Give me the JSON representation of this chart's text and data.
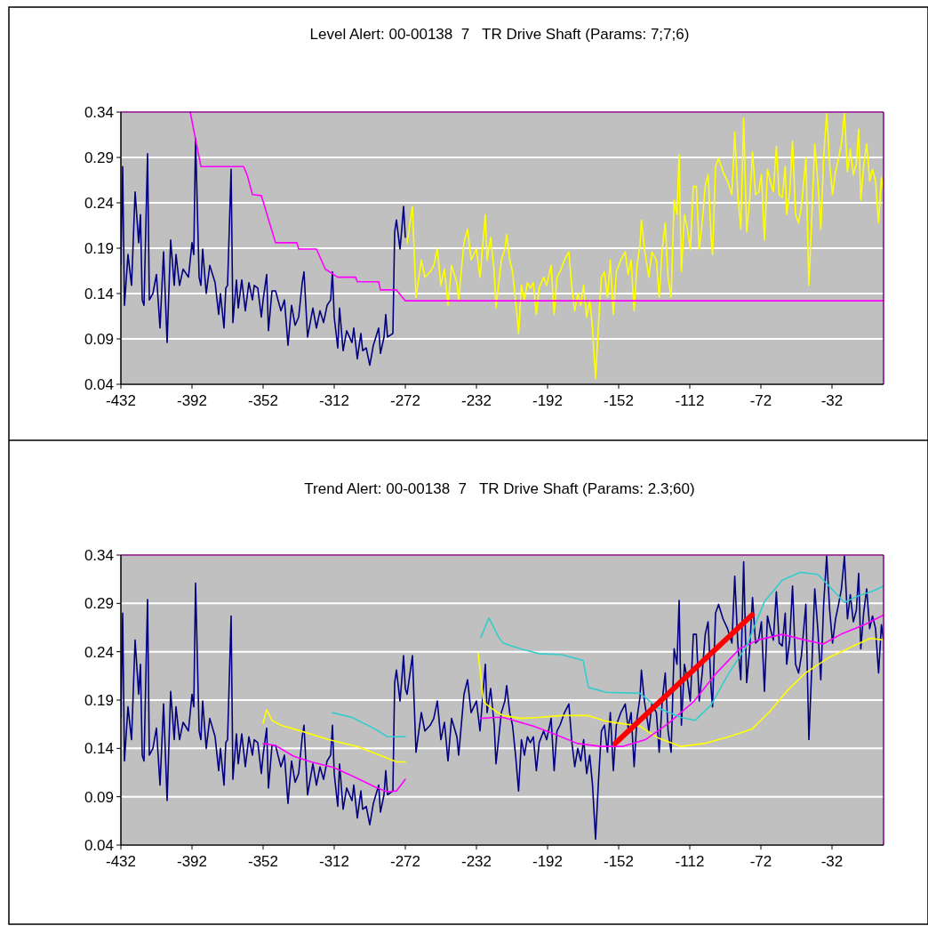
{
  "chart_data": [
    {
      "type": "line",
      "title": "Level Alert: 00-00138  7   TR Drive Shaft (Params: 7;7;6)",
      "xlim": [
        -432,
        -3
      ],
      "ylim": [
        0.04,
        0.34
      ],
      "xticks": [
        -432,
        -392,
        -352,
        -312,
        -272,
        -232,
        -192,
        -152,
        -112,
        -72,
        -32
      ],
      "yticks": [
        0.04,
        0.09,
        0.14,
        0.19,
        0.24,
        0.29,
        0.34
      ],
      "grid": "y",
      "marker": "none",
      "line_style": "solid",
      "series": [
        {
          "color": "#000080",
          "x": [
            -432,
            -431,
            -430,
            -428,
            -426,
            -424,
            -422,
            -421,
            -420,
            -419,
            -417,
            -416,
            -414,
            -412,
            -410,
            -408,
            -406,
            -404,
            -402,
            -401,
            -399,
            -397,
            -394,
            -392,
            -391,
            -390,
            -388,
            -387,
            -386,
            -384,
            -382,
            -379,
            -377,
            -376,
            -374,
            -373,
            -372,
            -370,
            -369,
            -367,
            -366,
            -364,
            -362,
            -360,
            -358,
            -357,
            -355,
            -353,
            -352,
            -350,
            -349,
            -347,
            -345,
            -342,
            -340,
            -338,
            -336,
            -334,
            -332,
            -330,
            -329,
            -327,
            -324,
            -322,
            -320,
            -318,
            -316,
            -314,
            -313,
            -312,
            -310,
            -309,
            -307,
            -305,
            -302,
            -301,
            -299,
            -297,
            -296,
            -294,
            -292,
            -290,
            -287,
            -286,
            -284,
            -283,
            -282,
            -279,
            -278,
            -277,
            -275,
            -274,
            -273,
            -272
          ],
          "values": [
            0.172,
            0.28,
            0.127,
            0.183,
            0.149,
            0.252,
            0.196,
            0.227,
            0.133,
            0.127,
            0.294,
            0.133,
            0.14,
            0.161,
            0.102,
            0.186,
            0.086,
            0.199,
            0.149,
            0.183,
            0.149,
            0.167,
            0.158,
            0.196,
            0.183,
            0.311,
            0.158,
            0.149,
            0.189,
            0.14,
            0.171,
            0.152,
            0.117,
            0.14,
            0.102,
            0.146,
            0.149,
            0.277,
            0.108,
            0.155,
            0.124,
            0.155,
            0.121,
            0.152,
            0.133,
            0.149,
            0.146,
            0.114,
            0.133,
            0.161,
            0.099,
            0.143,
            0.143,
            0.121,
            0.133,
            0.083,
            0.127,
            0.105,
            0.114,
            0.152,
            0.164,
            0.092,
            0.124,
            0.102,
            0.121,
            0.108,
            0.127,
            0.133,
            0.164,
            0.114,
            0.08,
            0.124,
            0.077,
            0.099,
            0.086,
            0.102,
            0.068,
            0.096,
            0.077,
            0.08,
            0.061,
            0.083,
            0.102,
            0.074,
            0.092,
            0.117,
            0.092,
            0.096,
            0.208,
            0.221,
            0.189,
            0.211,
            0.236,
            0.202
          ]
        },
        {
          "color": "#ffff00",
          "x": [
            -271,
            -268,
            -266,
            -263,
            -261,
            -258,
            -256,
            -254,
            -252,
            -250,
            -248,
            -246,
            -243,
            -242,
            -239,
            -237,
            -235,
            -232,
            -230,
            -227,
            -226,
            -224,
            -222,
            -221,
            -218,
            -216,
            -215,
            -213.3,
            -211.7,
            -210,
            -208.3,
            -206.7,
            -205,
            -203.3,
            -201.7,
            -200,
            -198.3,
            -196.7,
            -194.2,
            -192.5,
            -190,
            -188.3,
            -186.7,
            -185,
            -182.5,
            -180,
            -178.3,
            -176.7,
            -175,
            -173.3,
            -171.7,
            -170,
            -168.3,
            -166.7,
            -165,
            -163.3,
            -161.7,
            -160,
            -158.3,
            -156.7,
            -155,
            -153.3,
            -150.8,
            -148.3,
            -146.7,
            -145,
            -143.3,
            -141.7,
            -140,
            -139.2,
            -137.5,
            -135,
            -133.3,
            -130.8,
            -129.2,
            -127.5,
            -125.8,
            -124.2,
            -122.5,
            -120.8,
            -119.2,
            -118,
            -116.7,
            -115,
            -113.3,
            -111.7,
            -110,
            -108.3,
            -106.7,
            -105,
            -103.3,
            -101.7,
            -100,
            -99.2,
            -97.5,
            -95.8,
            -93.3,
            -90.8,
            -88.3,
            -86.7,
            -85,
            -83.3,
            -81.7,
            -80,
            -78.3,
            -76.7,
            -75,
            -73.3,
            -71.7,
            -70,
            -68.3,
            -66.7,
            -65,
            -63.3,
            -61.7,
            -60,
            -58.3,
            -57.5,
            -55.8,
            -54.2,
            -52.5,
            -50.8,
            -49.2,
            -46.7,
            -45,
            -43.3,
            -41.7,
            -40,
            -38.3,
            -36.7,
            -35,
            -33.3,
            -31.7,
            -30,
            -28.3,
            -26.7,
            -25,
            -23.3,
            -21.7,
            -20,
            -18.3,
            -17,
            -15.8,
            -14.2,
            -12.5,
            -10.8,
            -9.2,
            -7.5,
            -5.8,
            -4.2,
            -3
          ],
          "values": [
            0.196,
            0.236,
            0.136,
            0.177,
            0.158,
            0.164,
            0.171,
            0.189,
            0.149,
            0.167,
            0.127,
            0.171,
            0.152,
            0.133,
            0.196,
            0.211,
            0.177,
            0.189,
            0.158,
            0.227,
            0.177,
            0.202,
            0.164,
            0.124,
            0.177,
            0.189,
            0.205,
            0.177,
            0.164,
            0.133,
            0.096,
            0.149,
            0.133,
            0.152,
            0.146,
            0.152,
            0.117,
            0.146,
            0.158,
            0.149,
            0.171,
            0.117,
            0.158,
            0.164,
            0.177,
            0.186,
            0.146,
            0.121,
            0.14,
            0.127,
            0.149,
            0.114,
            0.133,
            0.102,
            0.046,
            0.108,
            0.158,
            0.164,
            0.136,
            0.177,
            0.117,
            0.164,
            0.177,
            0.186,
            0.161,
            0.177,
            0.121,
            0.171,
            0.193,
            0.221,
            0.189,
            0.158,
            0.186,
            0.177,
            0.136,
            0.189,
            0.218,
            0.158,
            0.136,
            0.243,
            0.227,
            0.293,
            0.164,
            0.227,
            0.211,
            0.189,
            0.258,
            0.258,
            0.189,
            0.218,
            0.258,
            0.271,
            0.202,
            0.183,
            0.28,
            0.289,
            0.274,
            0.264,
            0.249,
            0.318,
            0.249,
            0.211,
            0.333,
            0.208,
            0.243,
            0.296,
            0.249,
            0.252,
            0.271,
            0.199,
            0.277,
            0.264,
            0.252,
            0.302,
            0.249,
            0.246,
            0.28,
            0.227,
            0.252,
            0.308,
            0.227,
            0.218,
            0.236,
            0.289,
            0.149,
            0.227,
            0.305,
            0.264,
            0.211,
            0.289,
            0.339,
            0.283,
            0.249,
            0.274,
            0.289,
            0.305,
            0.339,
            0.274,
            0.299,
            0.271,
            0.283,
            0.321,
            0.243,
            0.28,
            0.305,
            0.264,
            0.277,
            0.264,
            0.218,
            0.268,
            0.252
          ]
        },
        {
          "color": "#ff00ff",
          "x": [
            -393,
            -387,
            -363,
            -361,
            -358,
            -353,
            -345,
            -333,
            -332,
            -322,
            -317,
            -310,
            -300,
            -299,
            -287,
            -286,
            -277,
            -272,
            -3
          ],
          "values": [
            0.34,
            0.28,
            0.28,
            0.271,
            0.249,
            0.248,
            0.196,
            0.196,
            0.189,
            0.189,
            0.167,
            0.158,
            0.158,
            0.153,
            0.153,
            0.144,
            0.144,
            0.132,
            0.132
          ]
        }
      ]
    },
    {
      "type": "line",
      "title": "Trend Alert: 00-00138  7   TR Drive Shaft (Params: 2.3;60)",
      "xlim": [
        -432,
        -3
      ],
      "ylim": [
        0.04,
        0.34
      ],
      "xticks": [
        -432,
        -392,
        -352,
        -312,
        -272,
        -232,
        -192,
        -152,
        -112,
        -72,
        -32
      ],
      "yticks": [
        0.04,
        0.09,
        0.14,
        0.19,
        0.24,
        0.29,
        0.34
      ],
      "grid": "y",
      "marker": "none",
      "line_style": "solid",
      "series": [
        {
          "color": "#000080",
          "x": [
            -432,
            -431,
            -430,
            -428,
            -426,
            -424,
            -422,
            -421,
            -420,
            -419,
            -417,
            -416,
            -414,
            -412,
            -410,
            -408,
            -406,
            -404,
            -402,
            -401,
            -399,
            -397,
            -394,
            -392,
            -391,
            -390,
            -388,
            -387,
            -386,
            -384,
            -382,
            -379,
            -377,
            -376,
            -374,
            -373,
            -372,
            -370,
            -369,
            -367,
            -366,
            -364,
            -362,
            -360,
            -358,
            -357,
            -355,
            -353,
            -352,
            -350,
            -349,
            -347,
            -345,
            -342,
            -340,
            -338,
            -336,
            -334,
            -332,
            -330,
            -329,
            -327,
            -324,
            -322,
            -320,
            -318,
            -316,
            -314,
            -313,
            -312,
            -310,
            -309,
            -307,
            -305,
            -302,
            -301,
            -299,
            -297,
            -296,
            -294,
            -292,
            -290,
            -287,
            -286,
            -284,
            -283,
            -282,
            -279,
            -278,
            -277,
            -275,
            -274,
            -273,
            -272,
            -271,
            -268,
            -266,
            -263,
            -261,
            -258,
            -256,
            -254,
            -252,
            -250,
            -248,
            -246,
            -243,
            -242,
            -239,
            -237,
            -235,
            -232,
            -230,
            -227,
            -226,
            -224,
            -222,
            -221,
            -218,
            -216,
            -215,
            -213.3,
            -211.7,
            -210,
            -208.3,
            -206.7,
            -205,
            -203.3,
            -201.7,
            -200,
            -198.3,
            -196.7,
            -194.2,
            -192.5,
            -190,
            -188.3,
            -186.7,
            -185,
            -182.5,
            -180,
            -178.3,
            -176.7,
            -175,
            -173.3,
            -171.7,
            -170,
            -168.3,
            -166.7,
            -165,
            -163.3,
            -161.7,
            -160,
            -158.3,
            -156.7,
            -155,
            -153.3,
            -150.8,
            -148.3,
            -146.7,
            -145,
            -143.3,
            -141.7,
            -140,
            -139.2,
            -137.5,
            -135,
            -133.3,
            -130.8,
            -129.2,
            -127.5,
            -125.8,
            -124.2,
            -122.5,
            -120.8,
            -119.2,
            -118,
            -116.7,
            -115,
            -113.3,
            -111.7,
            -110,
            -108.3,
            -106.7,
            -105,
            -103.3,
            -101.7,
            -100,
            -99.2,
            -97.5,
            -95.8,
            -93.3,
            -90.8,
            -88.3,
            -86.7,
            -85,
            -83.3,
            -81.7,
            -80,
            -78.3,
            -76.7,
            -75,
            -73.3,
            -71.7,
            -70,
            -68.3,
            -66.7,
            -65,
            -63.3,
            -61.7,
            -60,
            -58.3,
            -57.5,
            -55.8,
            -54.2,
            -52.5,
            -50.8,
            -49.2,
            -46.7,
            -45,
            -43.3,
            -41.7,
            -40,
            -38.3,
            -36.7,
            -35,
            -33.3,
            -31.7,
            -30,
            -28.3,
            -26.7,
            -25,
            -23.3,
            -21.7,
            -20,
            -18.3,
            -17,
            -15.8,
            -14.2,
            -12.5,
            -10.8,
            -9.2,
            -7.5,
            -5.8,
            -4.2,
            -3
          ],
          "values": [
            0.172,
            0.28,
            0.127,
            0.183,
            0.149,
            0.252,
            0.196,
            0.227,
            0.133,
            0.127,
            0.294,
            0.133,
            0.14,
            0.161,
            0.102,
            0.186,
            0.086,
            0.199,
            0.149,
            0.183,
            0.149,
            0.167,
            0.158,
            0.196,
            0.183,
            0.311,
            0.158,
            0.149,
            0.189,
            0.14,
            0.171,
            0.152,
            0.117,
            0.14,
            0.102,
            0.146,
            0.149,
            0.277,
            0.108,
            0.155,
            0.124,
            0.155,
            0.121,
            0.152,
            0.133,
            0.149,
            0.146,
            0.114,
            0.133,
            0.161,
            0.099,
            0.143,
            0.143,
            0.121,
            0.133,
            0.083,
            0.127,
            0.105,
            0.114,
            0.152,
            0.164,
            0.092,
            0.124,
            0.102,
            0.121,
            0.108,
            0.127,
            0.133,
            0.164,
            0.114,
            0.08,
            0.124,
            0.077,
            0.099,
            0.086,
            0.102,
            0.068,
            0.096,
            0.077,
            0.08,
            0.061,
            0.083,
            0.102,
            0.074,
            0.092,
            0.117,
            0.092,
            0.096,
            0.208,
            0.221,
            0.189,
            0.211,
            0.236,
            0.202,
            0.196,
            0.236,
            0.136,
            0.177,
            0.158,
            0.164,
            0.171,
            0.189,
            0.149,
            0.167,
            0.127,
            0.171,
            0.152,
            0.133,
            0.196,
            0.211,
            0.177,
            0.189,
            0.158,
            0.227,
            0.177,
            0.202,
            0.164,
            0.124,
            0.177,
            0.189,
            0.205,
            0.177,
            0.164,
            0.133,
            0.096,
            0.149,
            0.133,
            0.152,
            0.146,
            0.152,
            0.117,
            0.146,
            0.158,
            0.149,
            0.171,
            0.117,
            0.158,
            0.164,
            0.177,
            0.186,
            0.146,
            0.121,
            0.14,
            0.127,
            0.149,
            0.114,
            0.133,
            0.102,
            0.046,
            0.108,
            0.158,
            0.164,
            0.136,
            0.177,
            0.117,
            0.164,
            0.177,
            0.186,
            0.161,
            0.177,
            0.121,
            0.171,
            0.193,
            0.221,
            0.189,
            0.158,
            0.186,
            0.177,
            0.136,
            0.189,
            0.218,
            0.158,
            0.136,
            0.243,
            0.227,
            0.293,
            0.164,
            0.227,
            0.211,
            0.189,
            0.258,
            0.258,
            0.189,
            0.218,
            0.258,
            0.271,
            0.202,
            0.183,
            0.28,
            0.289,
            0.274,
            0.264,
            0.249,
            0.318,
            0.249,
            0.211,
            0.333,
            0.208,
            0.243,
            0.296,
            0.249,
            0.252,
            0.271,
            0.199,
            0.277,
            0.264,
            0.252,
            0.302,
            0.249,
            0.246,
            0.28,
            0.227,
            0.252,
            0.308,
            0.227,
            0.218,
            0.236,
            0.289,
            0.149,
            0.227,
            0.305,
            0.264,
            0.211,
            0.289,
            0.339,
            0.283,
            0.249,
            0.274,
            0.289,
            0.305,
            0.339,
            0.274,
            0.299,
            0.271,
            0.283,
            0.321,
            0.243,
            0.28,
            0.305,
            0.264,
            0.277,
            0.264,
            0.218,
            0.268,
            0.252
          ]
        },
        {
          "color": "#ffff00",
          "x": [
            -352,
            -350,
            -347,
            -342,
            -329,
            -315,
            -299,
            -285,
            -277,
            -272
          ],
          "values": [
            0.166,
            0.18,
            0.169,
            0.164,
            0.157,
            0.149,
            0.142,
            0.132,
            0.126,
            0.126
          ]
        },
        {
          "color": "#ff00ff",
          "x": [
            -352,
            -345,
            -335,
            -325,
            -312,
            -299,
            -289,
            -282,
            -277,
            -272
          ],
          "values": [
            0.145,
            0.143,
            0.132,
            0.126,
            0.12,
            0.109,
            0.1,
            0.095,
            0.096,
            0.108
          ]
        },
        {
          "color": "#33cccc",
          "x": [
            -313,
            -302,
            -289,
            -282,
            -272
          ],
          "values": [
            0.177,
            0.172,
            0.16,
            0.152,
            0.152
          ]
        },
        {
          "color": "#ffff00",
          "x": [
            -231,
            -228,
            -224,
            -219,
            -217,
            -207,
            -197,
            -184,
            -169,
            -159,
            -140,
            -130,
            -117,
            -104,
            -90,
            -77,
            -67,
            -57,
            -47,
            -33.7,
            -20,
            -10.3,
            -3
          ],
          "values": [
            0.238,
            0.188,
            0.182,
            0.176,
            0.174,
            0.171,
            0.172,
            0.174,
            0.174,
            0.168,
            0.163,
            0.151,
            0.142,
            0.145,
            0.152,
            0.16,
            0.178,
            0.2,
            0.218,
            0.234,
            0.246,
            0.254,
            0.252
          ]
        },
        {
          "color": "#ff00ff",
          "x": [
            -229.5,
            -222,
            -217,
            -200,
            -187,
            -175,
            -162,
            -150,
            -137,
            -124,
            -110,
            -97,
            -84,
            -74,
            -60,
            -47,
            -37,
            -27,
            -13.7,
            -3
          ],
          "values": [
            0.171,
            0.172,
            0.172,
            0.163,
            0.154,
            0.145,
            0.142,
            0.142,
            0.149,
            0.166,
            0.188,
            0.218,
            0.243,
            0.252,
            0.258,
            0.252,
            0.248,
            0.258,
            0.268,
            0.278
          ]
        },
        {
          "color": "#33cccc",
          "x": [
            -229.5,
            -225,
            -219.5,
            -217,
            -207,
            -197,
            -184,
            -172,
            -169,
            -159,
            -140,
            -130,
            -117,
            -109,
            -100,
            -90,
            -80,
            -70,
            -60,
            -50,
            -40,
            -33.7,
            -25,
            -17,
            -8.7,
            -3
          ],
          "values": [
            0.255,
            0.275,
            0.255,
            0.249,
            0.243,
            0.238,
            0.237,
            0.231,
            0.203,
            0.198,
            0.197,
            0.182,
            0.172,
            0.169,
            0.185,
            0.218,
            0.246,
            0.292,
            0.314,
            0.322,
            0.32,
            0.308,
            0.291,
            0.298,
            0.303,
            0.308
          ]
        },
        {
          "color": "#ff0000",
          "x": [
            -154,
            -77
          ],
          "values": [
            0.145,
            0.278
          ]
        }
      ]
    }
  ]
}
